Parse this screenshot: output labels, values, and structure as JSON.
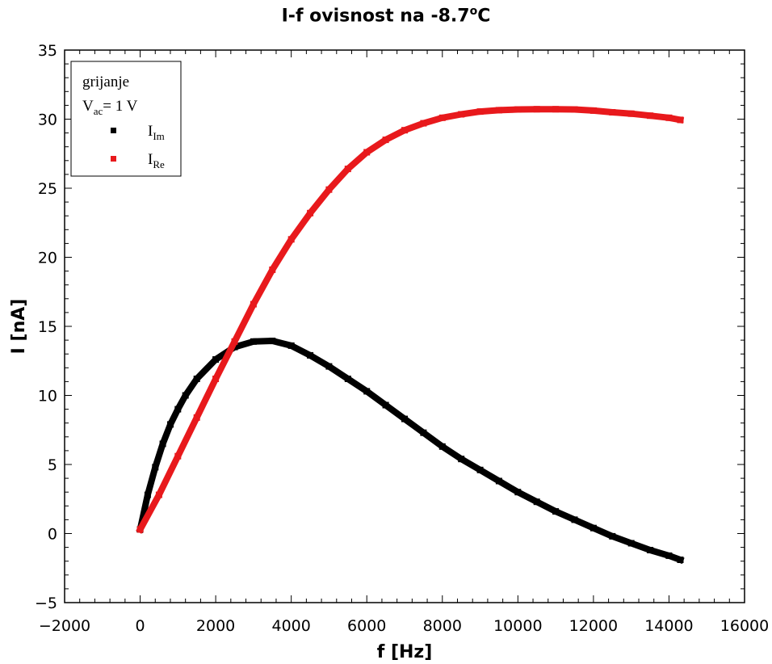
{
  "chart_data": {
    "type": "scatter",
    "title_main": "I-f ovisnost na -8.7",
    "title_sup": "o",
    "title_unit": "C",
    "xlabel": "f [Hz]",
    "ylabel": "I [nA]",
    "xlim": [
      -2000,
      16000
    ],
    "ylim": [
      -5,
      35
    ],
    "xticks": [
      -2000,
      0,
      2000,
      4000,
      6000,
      8000,
      10000,
      12000,
      14000,
      16000
    ],
    "xtick_labels": [
      "−2000",
      "0",
      "2000",
      "4000",
      "6000",
      "8000",
      "10000",
      "12000",
      "14000",
      "16000"
    ],
    "yticks": [
      -5,
      0,
      5,
      10,
      15,
      20,
      25,
      30,
      35
    ],
    "ytick_labels": [
      "−5",
      "0",
      "5",
      "10",
      "15",
      "20",
      "25",
      "30",
      "35"
    ],
    "grid": false,
    "legend": {
      "position": "top-left",
      "line1": "grijanje",
      "line2_main": "V",
      "line2_sub": "ac",
      "line2_rest": "= 1 V"
    },
    "series": [
      {
        "label_main": "I",
        "label_sub": "Im",
        "color": "#000000",
        "x": [
          0,
          200,
          400,
          600,
          800,
          1000,
          1200,
          1500,
          2000,
          2500,
          3000,
          3500,
          4000,
          4500,
          5000,
          5500,
          6000,
          6500,
          7000,
          7500,
          8000,
          8500,
          9000,
          9500,
          10000,
          10500,
          11000,
          11500,
          12000,
          12500,
          13000,
          13500,
          14000,
          14300
        ],
        "y": [
          0.3,
          2.8,
          4.8,
          6.5,
          7.9,
          9.0,
          10.0,
          11.2,
          12.6,
          13.5,
          13.9,
          13.95,
          13.6,
          12.9,
          12.1,
          11.2,
          10.3,
          9.3,
          8.3,
          7.3,
          6.3,
          5.4,
          4.6,
          3.8,
          3.0,
          2.3,
          1.6,
          1.0,
          0.4,
          -0.2,
          -0.7,
          -1.2,
          -1.6,
          -1.9
        ]
      },
      {
        "label_main": "I",
        "label_sub": "Re",
        "color": "#e8191c",
        "x": [
          0,
          500,
          1000,
          1500,
          2000,
          2500,
          3000,
          3500,
          4000,
          4500,
          5000,
          5500,
          6000,
          6500,
          7000,
          7500,
          8000,
          8500,
          9000,
          9500,
          10000,
          10500,
          11000,
          11500,
          12000,
          12500,
          13000,
          13500,
          14000,
          14300
        ],
        "y": [
          0.3,
          2.8,
          5.6,
          8.4,
          11.2,
          13.9,
          16.6,
          19.1,
          21.3,
          23.2,
          24.9,
          26.4,
          27.6,
          28.5,
          29.2,
          29.7,
          30.1,
          30.35,
          30.55,
          30.65,
          30.7,
          30.72,
          30.72,
          30.7,
          30.62,
          30.5,
          30.4,
          30.25,
          30.1,
          29.95
        ]
      }
    ]
  }
}
